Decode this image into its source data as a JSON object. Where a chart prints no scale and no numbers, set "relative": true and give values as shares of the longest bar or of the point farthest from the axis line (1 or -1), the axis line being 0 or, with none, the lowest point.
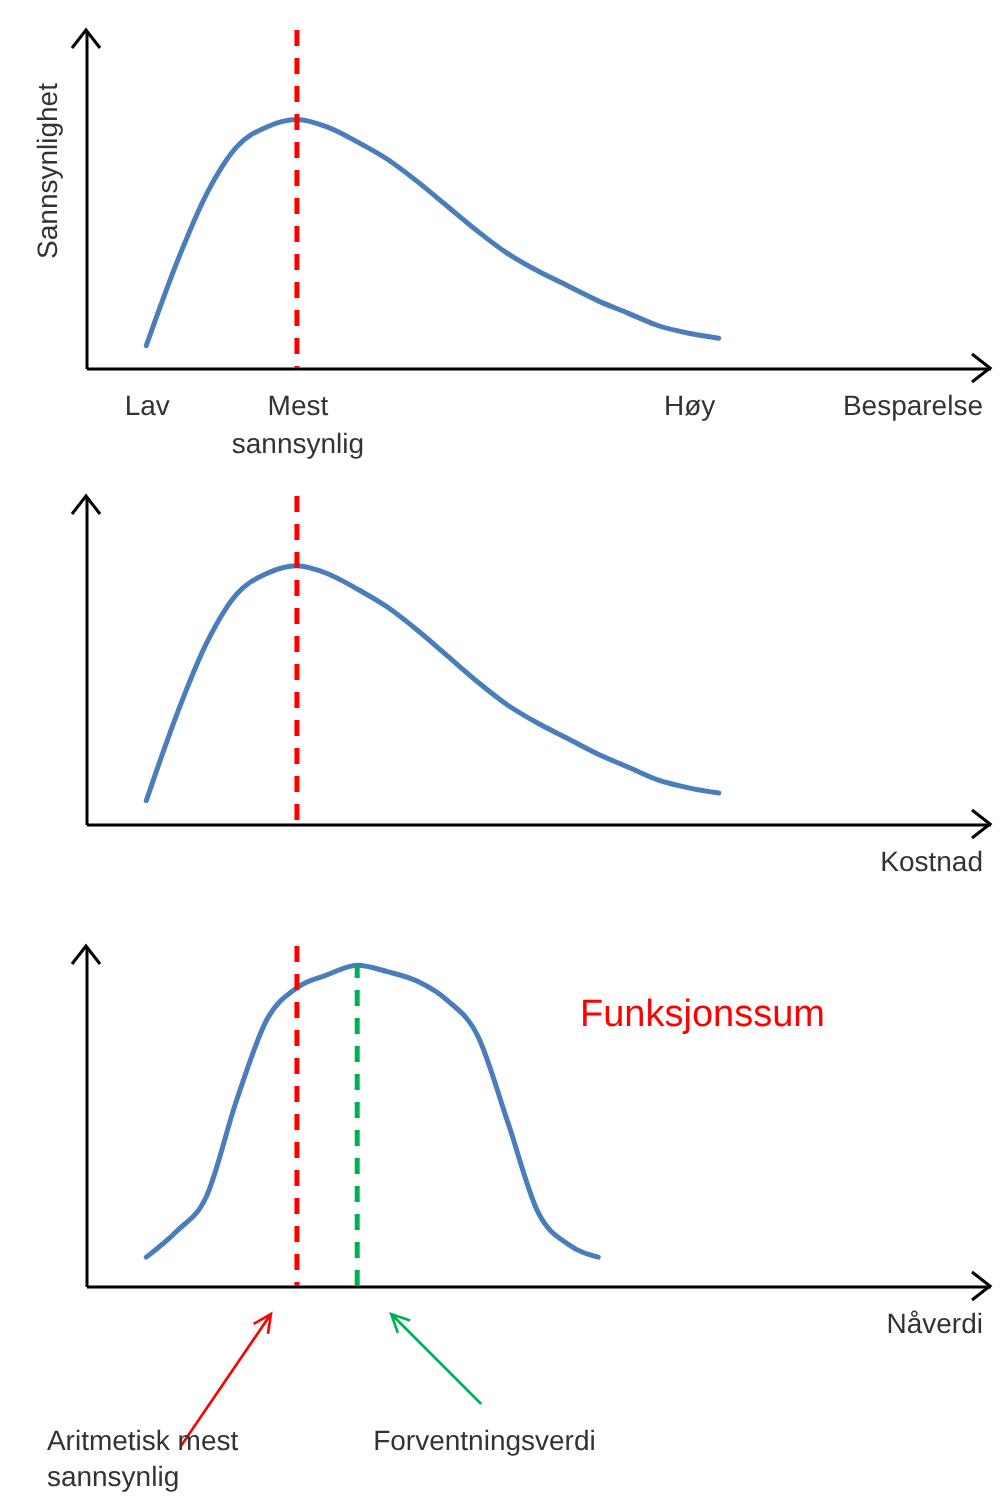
{
  "chart_data": [
    {
      "type": "line",
      "ylabel": "Sannsynlighet",
      "xlabel": "Besparelse",
      "relative": true,
      "categories": [
        null,
        null,
        "Lav",
        null,
        null,
        null,
        null,
        "Mest sannsynlig",
        null,
        null,
        null,
        null,
        null,
        null,
        null,
        null,
        null,
        null,
        null,
        null,
        "Høy",
        null,
        null,
        null,
        null,
        null,
        null,
        null,
        null,
        null,
        null
      ],
      "series": [
        {
          "color": "#4a7ebb",
          "values": [
            null,
            null,
            0.09,
            0.42,
            0.7,
            0.89,
            0.97,
            1.0,
            0.97,
            0.91,
            0.84,
            0.75,
            0.65,
            0.55,
            0.46,
            0.39,
            0.33,
            0.27,
            0.22,
            0.17,
            0.14,
            0.12,
            null,
            null,
            null,
            null,
            null,
            null,
            null,
            null,
            null
          ]
        }
      ],
      "ref_lines": [
        {
          "axis": "x",
          "value": "Mest sannsynlig",
          "color": "#ff0000",
          "line_style": "dashed"
        }
      ]
    },
    {
      "type": "line",
      "xlabel": "Kostnad",
      "relative": true,
      "tick_labels": false,
      "categories": [
        null,
        null,
        "Lav",
        null,
        null,
        null,
        null,
        "Mest sannsynlig",
        null,
        null,
        null,
        null,
        null,
        null,
        null,
        null,
        null,
        null,
        null,
        null,
        "Høy",
        null,
        null,
        null,
        null,
        null,
        null,
        null,
        null,
        null,
        null
      ],
      "series": [
        {
          "color": "#4a7ebb",
          "values": [
            null,
            null,
            0.09,
            0.42,
            0.7,
            0.89,
            0.97,
            1.0,
            0.97,
            0.91,
            0.84,
            0.75,
            0.65,
            0.55,
            0.46,
            0.39,
            0.33,
            0.27,
            0.22,
            0.17,
            0.14,
            0.12,
            null,
            null,
            null,
            null,
            null,
            null,
            null,
            null,
            null
          ]
        }
      ],
      "ref_lines": [
        {
          "axis": "x",
          "value": "Mest sannsynlig",
          "color": "#ff0000",
          "line_style": "dashed"
        }
      ]
    },
    {
      "type": "line",
      "xlabel": "Nåverdi",
      "relative": true,
      "tick_labels": false,
      "categories": [
        null,
        null,
        "Lav",
        null,
        null,
        null,
        null,
        "Mest sannsynlig",
        null,
        null,
        null,
        null,
        null,
        null,
        null,
        null,
        null,
        null,
        null,
        null,
        "Høy",
        null,
        null,
        null,
        null,
        null,
        null,
        null,
        null,
        null,
        null
      ],
      "series": [
        {
          "color": "#4a7ebb",
          "values": [
            null,
            null,
            0.09,
            0.17,
            0.28,
            0.58,
            0.83,
            0.93,
            0.97,
            1.0,
            0.98,
            0.95,
            0.89,
            0.78,
            0.51,
            0.23,
            0.13,
            0.09,
            null,
            null,
            null,
            null,
            null,
            null,
            null,
            null,
            null,
            null,
            null,
            null,
            null
          ]
        }
      ],
      "ref_lines": [
        {
          "axis": "x",
          "value": "Mest sannsynlig",
          "color": "#ff0000",
          "line_style": "dashed"
        }
      ],
      "annotations": [
        "Funksjonssum",
        "Aritmetisk mest sannsynlig",
        "Forventningsverdi"
      ]
    }
  ]
}
